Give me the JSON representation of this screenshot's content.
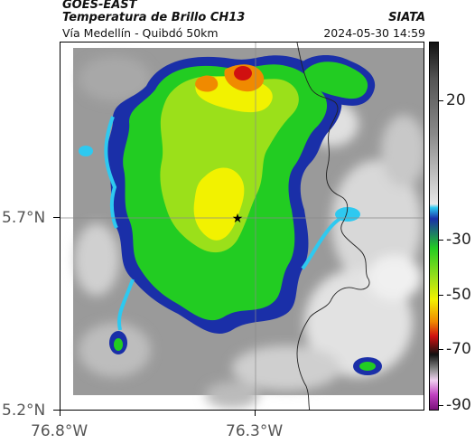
{
  "header": {
    "source": "GOES-EAST",
    "product": "Temperatura de Brillo CH13",
    "organization": "SIATA",
    "route": "Vía Medellín - Quibdó 50km",
    "datetime": "2024-05-30 14:59"
  },
  "map": {
    "lat_labels": [
      "5.7°N",
      "5.2°N"
    ],
    "lon_labels": [
      "76.8°W",
      "76.3°W"
    ],
    "marker": "star-marker"
  },
  "colorbar": {
    "labels": [
      "20",
      "-30",
      "-50",
      "-70",
      "-90"
    ],
    "colors": {
      "low": "#fff0ff",
      "magenta": "#c040c0",
      "red": "#d01010",
      "orange": "#f08a00",
      "yellow": "#f2f200",
      "green": "#22cc22",
      "blue": "#1a2fa8",
      "cyan": "#2ec9f0",
      "gray": "#8a8a8a"
    }
  }
}
